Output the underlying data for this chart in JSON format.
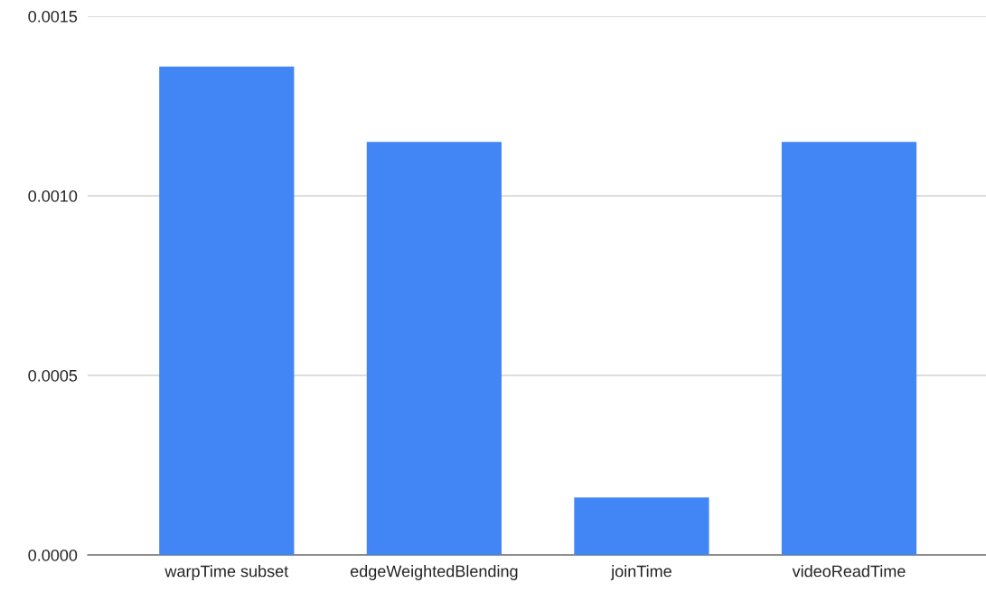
{
  "chart_data": {
    "type": "bar",
    "categories": [
      "warpTime subset",
      "edgeWeightedBlending",
      "joinTime",
      "videoReadTime"
    ],
    "values": [
      0.00136,
      0.00115,
      0.00016,
      0.00115
    ],
    "color": "#4285f4",
    "ylim": [
      0,
      0.0015
    ],
    "yticks": [
      {
        "value": 0,
        "label": "0.0000"
      },
      {
        "value": 0.0005,
        "label": "0.0005"
      },
      {
        "value": 0.001,
        "label": "0.0010"
      },
      {
        "value": 0.0015,
        "label": "0.0015"
      }
    ],
    "grid": "y"
  }
}
